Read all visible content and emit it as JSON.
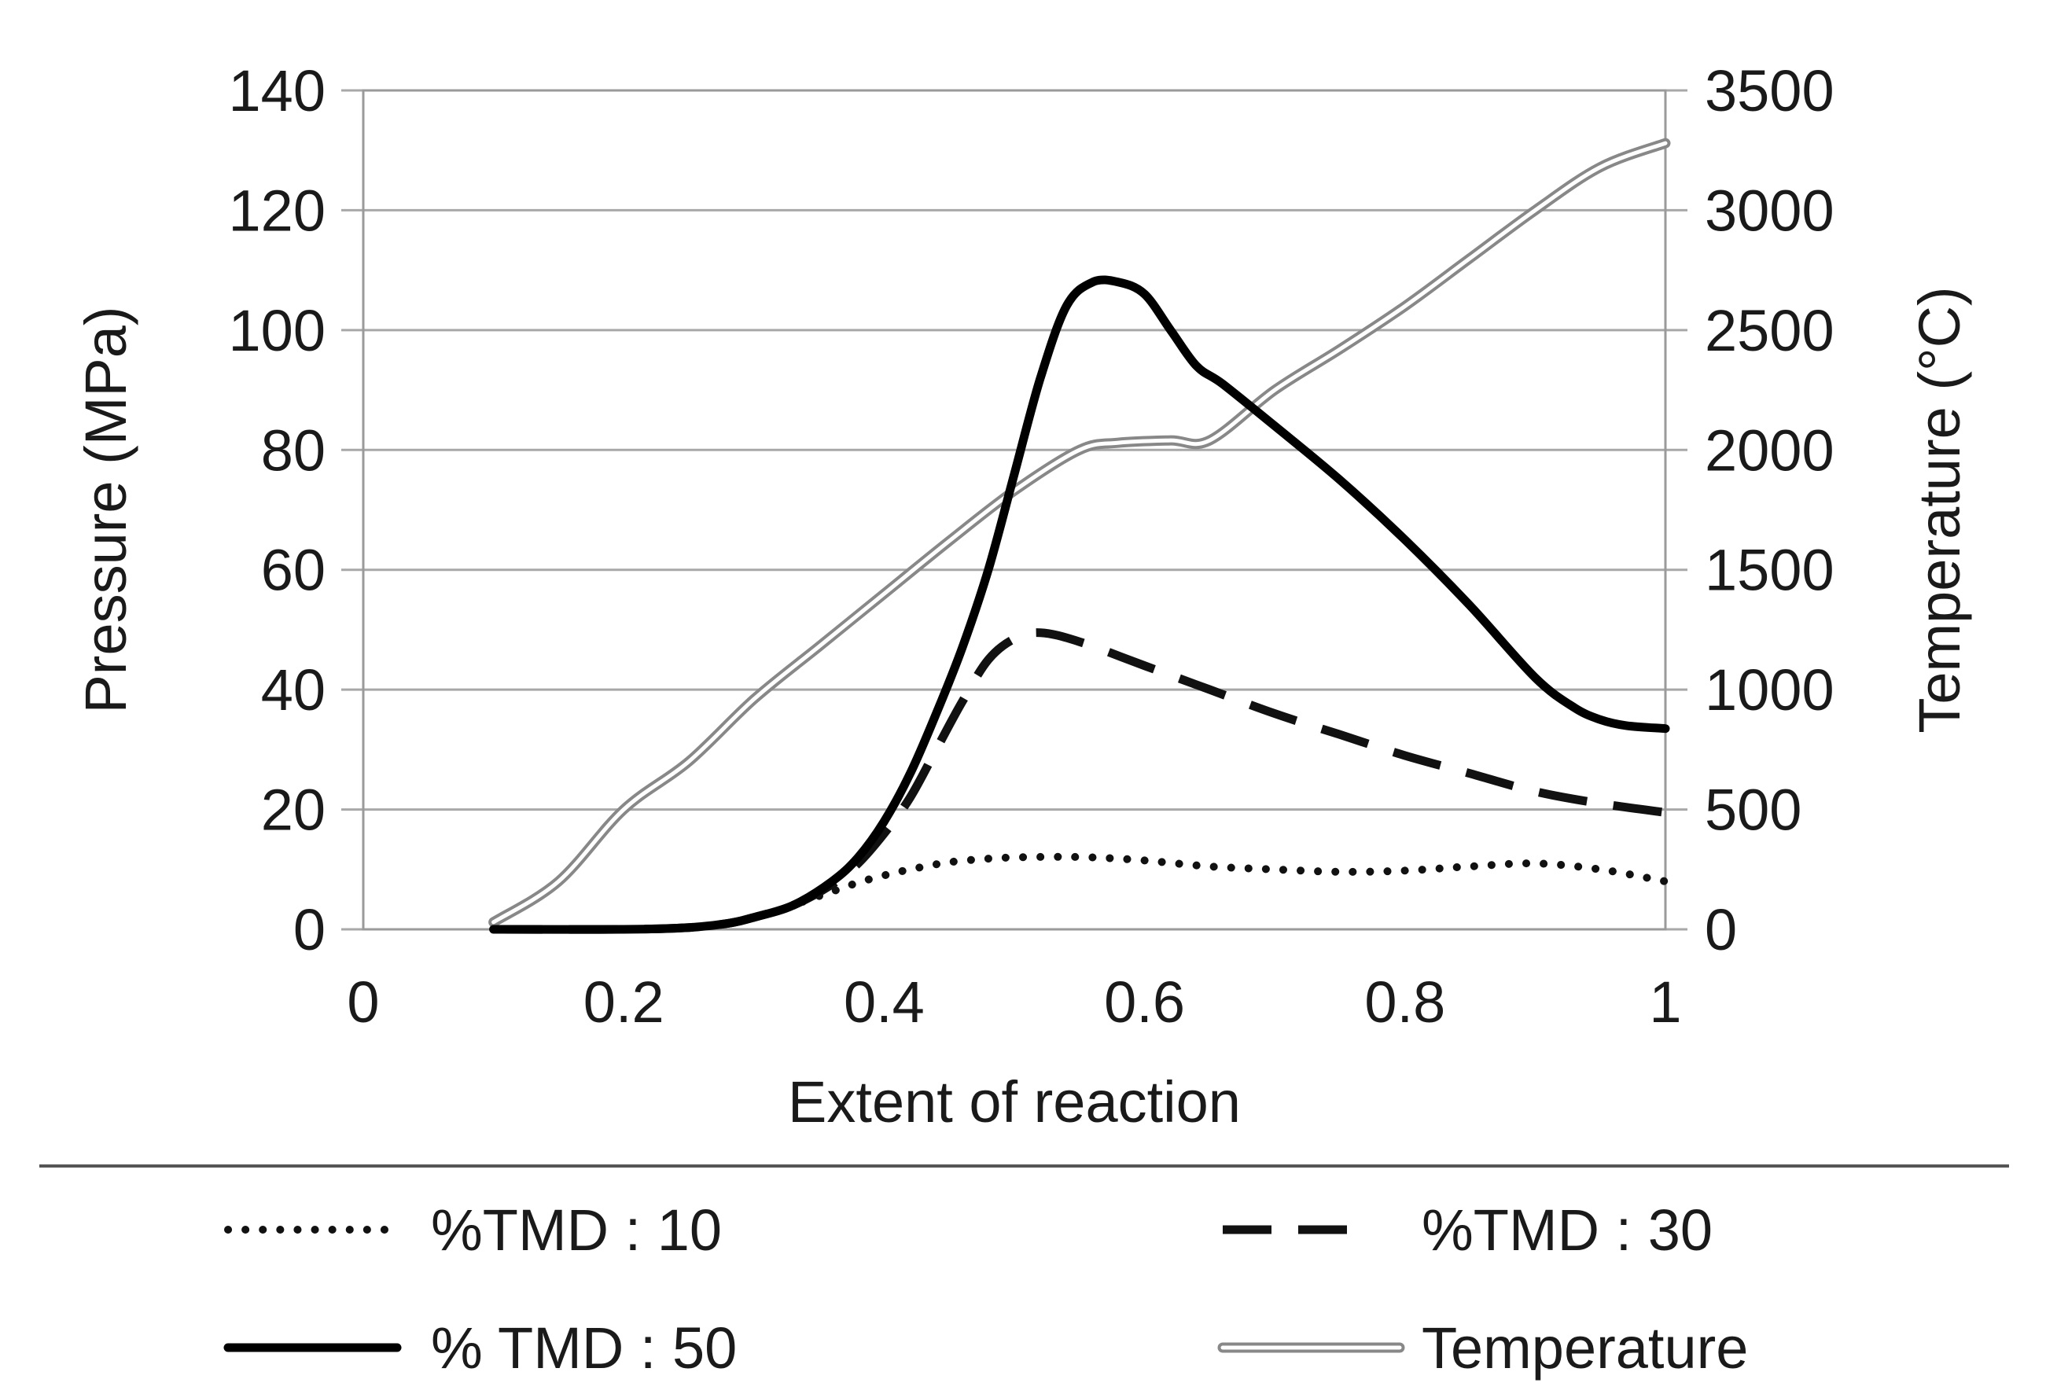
{
  "chart_data": {
    "type": "line",
    "title": "",
    "xlabel": "Extent of reaction",
    "ylabel": "Pressure (MPa)",
    "y2label": "Temperature (°C)",
    "xlim": [
      0,
      1
    ],
    "ylim": [
      0,
      140
    ],
    "y2lim": [
      0,
      3500
    ],
    "xticks": [
      "0",
      "0.2",
      "0.4",
      "0.6",
      "0.8",
      "1"
    ],
    "yticks": [
      "0",
      "20",
      "40",
      "60",
      "80",
      "100",
      "120",
      "140"
    ],
    "y2ticks": [
      "0",
      "500",
      "1000",
      "1500",
      "2000",
      "2500",
      "3000",
      "3500"
    ],
    "grid": true,
    "legend_position": "bottom",
    "series": [
      {
        "name": "%TMD : 10",
        "axis": "left",
        "style": "dotted",
        "color": "#111111",
        "x": [
          0.1,
          0.2,
          0.25,
          0.28,
          0.3,
          0.32,
          0.34,
          0.36,
          0.38,
          0.4,
          0.42,
          0.45,
          0.48,
          0.5,
          0.53,
          0.56,
          0.6,
          0.65,
          0.7,
          0.75,
          0.8,
          0.85,
          0.9,
          0.95,
          1.0
        ],
        "values": [
          0,
          0,
          0.3,
          1,
          2,
          3.2,
          4.8,
          6.3,
          7.8,
          9,
          10,
          11.2,
          11.8,
          12,
          12.1,
          12,
          11.5,
          10.5,
          10,
          9.6,
          9.8,
          10.5,
          11,
          10,
          8
        ]
      },
      {
        "name": "%TMD : 30",
        "axis": "left",
        "style": "dashed",
        "color": "#111111",
        "x": [
          0.1,
          0.2,
          0.25,
          0.28,
          0.3,
          0.33,
          0.36,
          0.38,
          0.4,
          0.42,
          0.44,
          0.46,
          0.48,
          0.5,
          0.52,
          0.55,
          0.6,
          0.65,
          0.7,
          0.75,
          0.8,
          0.85,
          0.9,
          0.95,
          1.0
        ],
        "values": [
          0,
          0,
          0.3,
          1,
          2,
          4,
          7.5,
          11,
          16,
          22,
          30,
          38,
          45,
          48.5,
          49.5,
          48,
          44,
          40,
          36,
          32.5,
          29,
          26,
          23,
          21,
          19.5
        ]
      },
      {
        "name": "% TMD : 50",
        "axis": "left",
        "style": "solid",
        "color": "#000000",
        "x": [
          0.1,
          0.2,
          0.25,
          0.28,
          0.3,
          0.33,
          0.36,
          0.38,
          0.4,
          0.42,
          0.44,
          0.46,
          0.48,
          0.5,
          0.52,
          0.54,
          0.56,
          0.58,
          0.6,
          0.62,
          0.64,
          0.66,
          0.7,
          0.75,
          0.8,
          0.85,
          0.9,
          0.93,
          0.95,
          0.97,
          1.0
        ],
        "values": [
          0,
          0,
          0.3,
          1,
          2,
          4,
          8,
          12,
          18,
          26,
          36,
          47,
          60,
          76,
          92,
          104,
          108,
          108,
          106,
          100,
          94,
          91,
          84,
          75,
          65,
          54,
          42,
          37,
          35,
          34,
          33.5
        ]
      },
      {
        "name": "Temperature",
        "axis": "right",
        "style": "double",
        "color": "#888888",
        "x": [
          0.1,
          0.15,
          0.2,
          0.25,
          0.3,
          0.35,
          0.4,
          0.45,
          0.5,
          0.55,
          0.58,
          0.62,
          0.65,
          0.7,
          0.75,
          0.8,
          0.85,
          0.9,
          0.95,
          1.0
        ],
        "values": [
          30,
          200,
          500,
          700,
          960,
          1180,
          1400,
          1620,
          1830,
          2000,
          2030,
          2040,
          2040,
          2250,
          2420,
          2600,
          2800,
          3000,
          3180,
          3280
        ]
      }
    ]
  }
}
